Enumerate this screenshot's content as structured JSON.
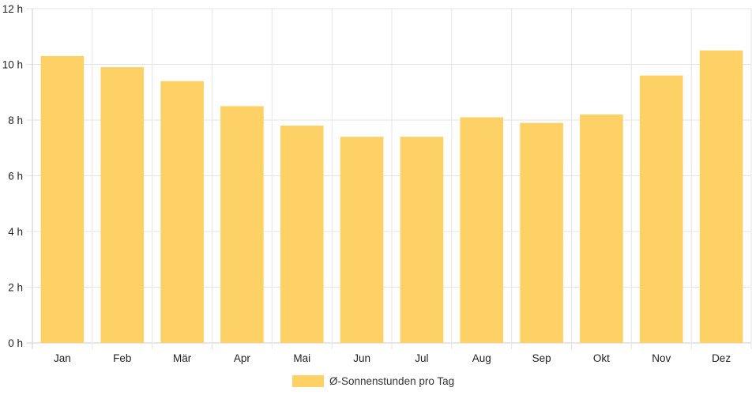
{
  "chart_data": {
    "type": "bar",
    "categories": [
      "Jan",
      "Feb",
      "Mär",
      "Apr",
      "Mai",
      "Jun",
      "Jul",
      "Aug",
      "Sep",
      "Okt",
      "Nov",
      "Dez"
    ],
    "series": [
      {
        "name": "Ø-Sonnenstunden pro Tag",
        "values": [
          10.3,
          9.9,
          9.4,
          8.5,
          7.8,
          7.4,
          7.4,
          8.1,
          7.9,
          8.2,
          9.6,
          10.5
        ]
      }
    ],
    "y_ticks": [
      "0 h",
      "2 h",
      "4 h",
      "6 h",
      "8 h",
      "10 h",
      "12 h"
    ],
    "ylim": [
      0,
      12
    ],
    "grid": true,
    "legend_position": "bottom",
    "colors": {
      "bar": "#fed167",
      "grid": "#e5e5e5",
      "axis": "#cccccc",
      "text": "#222222"
    }
  }
}
